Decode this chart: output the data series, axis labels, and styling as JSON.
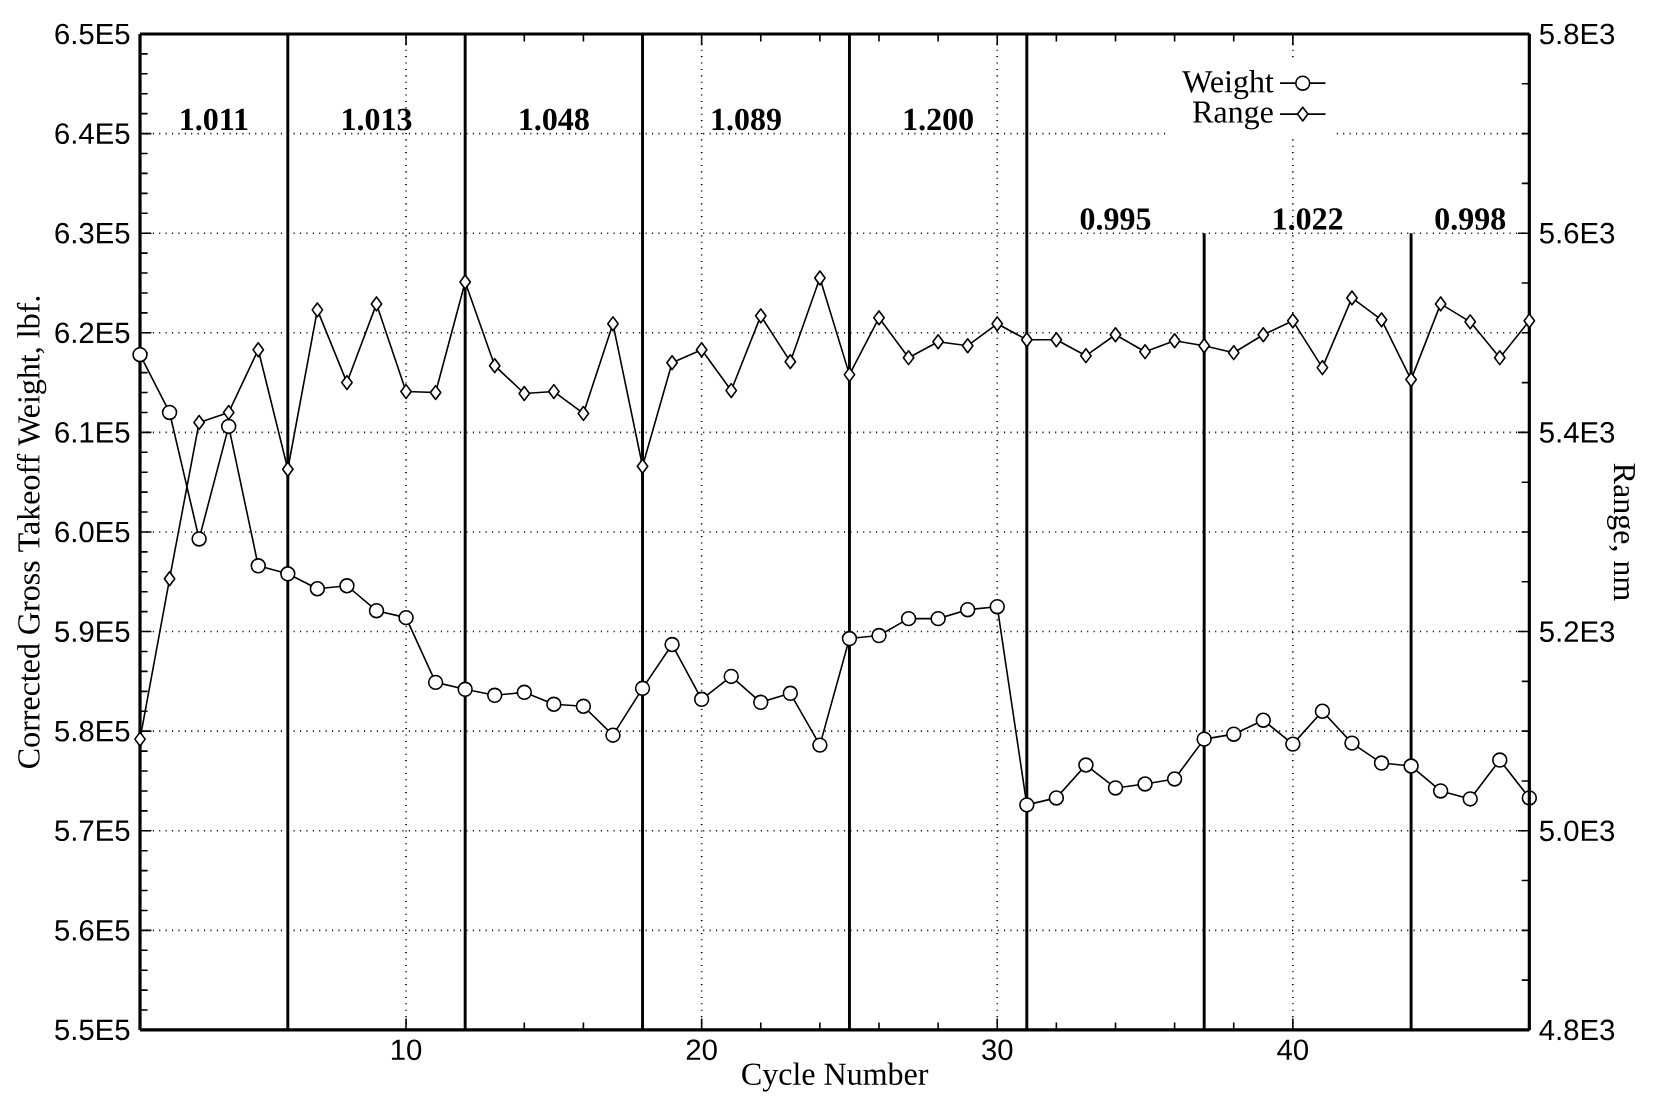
{
  "chart_data": {
    "type": "line",
    "xlabel": "Cycle Number",
    "ylabel": "Corrected Gross Takeoff Weight, lbf.",
    "y2label": "Range, nm",
    "x": [
      1,
      2,
      3,
      4,
      5,
      6,
      7,
      8,
      9,
      10,
      11,
      12,
      13,
      14,
      15,
      16,
      17,
      18,
      19,
      20,
      21,
      22,
      23,
      24,
      25,
      26,
      27,
      28,
      29,
      30,
      31,
      32,
      33,
      34,
      35,
      36,
      37,
      38,
      39,
      40,
      41,
      42,
      43,
      44,
      45,
      46,
      47,
      48
    ],
    "series": [
      {
        "name": "Weight",
        "color": "#000000",
        "marker": "circle",
        "values": [
          617800,
          612000,
          599300,
          610600,
          596600,
          595800,
          594300,
          594600,
          592100,
          591400,
          584900,
          584200,
          583600,
          583900,
          582700,
          582500,
          579600,
          584300,
          588700,
          583200,
          585500,
          582900,
          583800,
          578600,
          589300,
          589600,
          591300,
          591300,
          592200,
          592500,
          572600,
          573300,
          576600,
          574300,
          574700,
          575200,
          579200,
          579700,
          581100,
          578700,
          582000,
          578800,
          576800,
          576500,
          574000,
          573200,
          577100,
          573300
        ]
      },
      {
        "name": "Range",
        "color": "#000000",
        "marker": "diamond",
        "axis": "y2",
        "values": [
          5092,
          5253,
          5410,
          5420,
          5483,
          5363,
          5523,
          5450,
          5529,
          5441,
          5440,
          5551,
          5467,
          5439,
          5441,
          5419,
          5509,
          5366,
          5470,
          5483,
          5442,
          5517,
          5471,
          5555,
          5458,
          5515,
          5475,
          5491,
          5487,
          5509,
          5493,
          5493,
          5477,
          5498,
          5481,
          5492,
          5487,
          5480,
          5498,
          5512,
          5465,
          5535,
          5513,
          5453,
          5529,
          5511,
          5475,
          5512
        ]
      }
    ],
    "xlim": [
      1,
      48
    ],
    "xticks": [
      10,
      20,
      30,
      40
    ],
    "ylim": [
      550000,
      650000
    ],
    "yticks": [
      {
        "value": 550000,
        "label": "5.5E5"
      },
      {
        "value": 560000,
        "label": "5.6E5"
      },
      {
        "value": 570000,
        "label": "5.7E5"
      },
      {
        "value": 580000,
        "label": "5.8E5"
      },
      {
        "value": 590000,
        "label": "5.9E5"
      },
      {
        "value": 600000,
        "label": "6.0E5"
      },
      {
        "value": 610000,
        "label": "6.1E5"
      },
      {
        "value": 620000,
        "label": "6.2E5"
      },
      {
        "value": 630000,
        "label": "6.3E5"
      },
      {
        "value": 640000,
        "label": "6.4E5"
      },
      {
        "value": 650000,
        "label": "6.5E5"
      }
    ],
    "y2lim": [
      4800,
      5800
    ],
    "y2ticks": [
      {
        "value": 4800,
        "label": "4.8E3"
      },
      {
        "value": 5000,
        "label": "5.0E3"
      },
      {
        "value": 5200,
        "label": "5.2E3"
      },
      {
        "value": 5400,
        "label": "5.4E3"
      },
      {
        "value": 5600,
        "label": "5.6E3"
      },
      {
        "value": 5800,
        "label": "5.8E3"
      }
    ],
    "ref_lines": [
      {
        "axis": "x",
        "value": 6,
        "color": "#000000"
      },
      {
        "axis": "x",
        "value": 12,
        "color": "#000000"
      },
      {
        "axis": "x",
        "value": 18,
        "color": "#000000"
      },
      {
        "axis": "x",
        "value": 25,
        "color": "#000000"
      },
      {
        "axis": "x",
        "value": 31,
        "color": "#000000"
      },
      {
        "axis": "x",
        "value": 37,
        "color": "#000000"
      },
      {
        "axis": "x",
        "value": 44,
        "color": "#000000"
      }
    ],
    "annotations": [
      "1.011",
      "1.013",
      "1.048",
      "1.089",
      "1.200",
      "0.995",
      "1.022",
      "0.998"
    ],
    "grid": true,
    "legend": "top right",
    "line_style": "solid"
  }
}
